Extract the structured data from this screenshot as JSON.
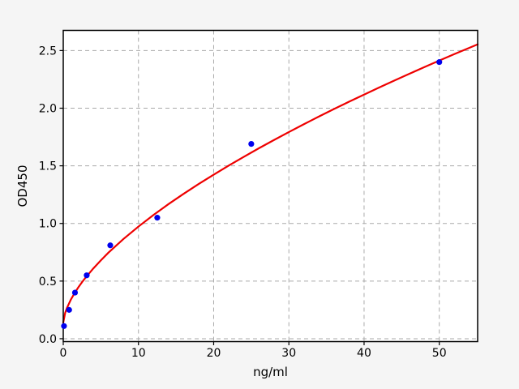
{
  "chart_data": {
    "type": "scatter",
    "title": "",
    "xlabel": "ng/ml",
    "ylabel": "OD450",
    "xlim": [
      0,
      55.1
    ],
    "ylim": [
      -0.025,
      2.675
    ],
    "x_ticks": {
      "values": [
        0,
        10,
        20,
        30,
        40,
        50
      ],
      "labels": [
        "0",
        "10",
        "20",
        "30",
        "40",
        "50"
      ]
    },
    "y_ticks": {
      "values": [
        0,
        0.5,
        1.0,
        1.5,
        2.0,
        2.5
      ],
      "labels": [
        "0.0",
        "0.5",
        "1.0",
        "1.5",
        "2.0",
        "2.5"
      ]
    },
    "grid": {
      "show": true,
      "style": "dashed",
      "color": "#aaaaaa"
    },
    "legend": {
      "show": false
    },
    "colors": {
      "figure_bg": "#f5f5f5",
      "plot_bg": "#ffffff",
      "frame": "#000000",
      "points": "#0000ee",
      "curve": "#ee0000"
    },
    "series": [
      {
        "name": "standard-points",
        "kind": "scatter",
        "color": "#0000ee",
        "marker": "circle",
        "x": [
          0.1,
          0.78,
          1.56,
          3.12,
          6.25,
          12.5,
          25,
          50
        ],
        "y": [
          0.11,
          0.25,
          0.4,
          0.55,
          0.81,
          1.05,
          1.69,
          2.4
        ]
      },
      {
        "name": "fit-curve",
        "kind": "line",
        "color": "#ee0000",
        "width": 2.2,
        "x": [
          0,
          0.25,
          0.5,
          1,
          1.5,
          2,
          2.5,
          3,
          4,
          5,
          6,
          8,
          10,
          12,
          14,
          16,
          18,
          20,
          22,
          24,
          26,
          28,
          30,
          32,
          34,
          36,
          38,
          40,
          42,
          44,
          46,
          48,
          50,
          52,
          54,
          55.1
        ],
        "y": [
          0.14,
          0.223,
          0.268,
          0.338,
          0.395,
          0.445,
          0.491,
          0.533,
          0.61,
          0.68,
          0.746,
          0.865,
          0.973,
          1.074,
          1.168,
          1.257,
          1.342,
          1.423,
          1.502,
          1.578,
          1.652,
          1.723,
          1.793,
          1.861,
          1.928,
          1.993,
          2.056,
          2.118,
          2.179,
          2.239,
          2.298,
          2.356,
          2.413,
          2.469,
          2.524,
          2.554
        ]
      }
    ]
  }
}
